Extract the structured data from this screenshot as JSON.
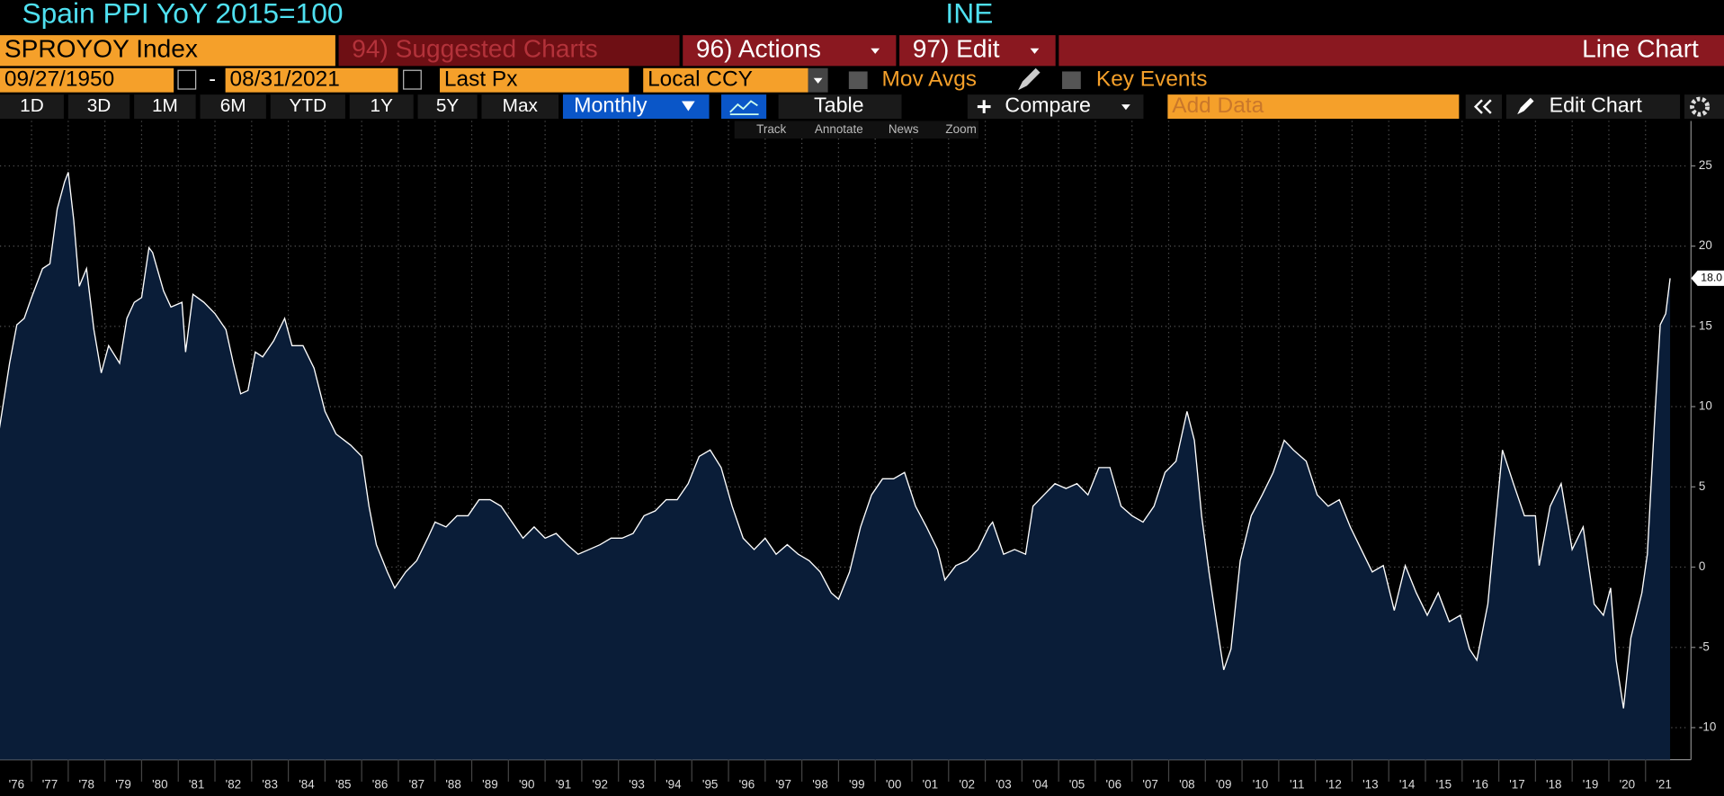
{
  "header": {
    "title": "Spain PPI YoY 2015=100",
    "source": "INE"
  },
  "menu": {
    "ticker": "SPROYOY Index",
    "suggested": "94) Suggested Charts",
    "actions": "96) Actions",
    "edit": "97) Edit",
    "chart_type": "Line Chart"
  },
  "settings": {
    "start_date": "09/27/1950",
    "separator": "-",
    "end_date": "08/31/2021",
    "field": "Last Px",
    "currency": "Local CCY",
    "mov_avgs": "Mov Avgs",
    "key_events": "Key Events"
  },
  "toolbar": {
    "ranges": [
      "1D",
      "3D",
      "1M",
      "6M",
      "YTD",
      "1Y",
      "5Y",
      "Max"
    ],
    "frequency": "Monthly",
    "table": "Table",
    "compare": "Compare",
    "add_data": "Add Data",
    "edit_chart": "Edit Chart"
  },
  "chart_tools": [
    "Track",
    "Annotate",
    "News",
    "Zoom"
  ],
  "chart_data": {
    "type": "line",
    "color": "#ffffff",
    "fill": "#0a1d38",
    "x": [
      1976.1,
      1976.4,
      1976.6,
      1976.8,
      1977.0,
      1977.3,
      1977.5,
      1977.7,
      1977.9,
      1978.0,
      1978.15,
      1978.3,
      1978.5,
      1978.7,
      1978.9,
      1979.1,
      1979.4,
      1979.6,
      1979.8,
      1980.0,
      1980.2,
      1980.3,
      1980.6,
      1980.8,
      1981.1,
      1981.2,
      1981.4,
      1981.7,
      1982.0,
      1982.3,
      1982.5,
      1982.7,
      1982.9,
      1983.1,
      1983.3,
      1983.6,
      1983.9,
      1984.1,
      1984.4,
      1984.7,
      1985.0,
      1985.3,
      1985.7,
      1986.0,
      1986.2,
      1986.4,
      1986.7,
      1986.9,
      1987.2,
      1987.5,
      1987.8,
      1988.0,
      1988.3,
      1988.6,
      1988.9,
      1989.2,
      1989.5,
      1989.8,
      1990.1,
      1990.4,
      1990.7,
      1991.0,
      1991.3,
      1991.6,
      1991.9,
      1992.2,
      1992.5,
      1992.8,
      1993.1,
      1993.4,
      1993.7,
      1994.0,
      1994.3,
      1994.6,
      1994.9,
      1995.2,
      1995.5,
      1995.8,
      1996.1,
      1996.4,
      1996.7,
      1997.0,
      1997.3,
      1997.6,
      1997.9,
      1998.2,
      1998.5,
      1998.8,
      1999.0,
      1999.3,
      1999.6,
      1999.9,
      2000.2,
      2000.5,
      2000.8,
      2001.1,
      2001.4,
      2001.7,
      2001.9,
      2002.2,
      2002.5,
      2002.8,
      2003.1,
      2003.2,
      2003.5,
      2003.8,
      2004.1,
      2004.3,
      2004.6,
      2004.9,
      2005.2,
      2005.5,
      2005.8,
      2006.1,
      2006.4,
      2006.7,
      2007.0,
      2007.3,
      2007.6,
      2007.9,
      2008.2,
      2008.5,
      2008.7,
      2008.9,
      2009.1,
      2009.3,
      2009.5,
      2009.7,
      2009.95,
      2010.25,
      2010.55,
      2010.85,
      2011.15,
      2011.4,
      2011.75,
      2012.05,
      2012.35,
      2012.65,
      2012.95,
      2013.25,
      2013.55,
      2013.85,
      2014.15,
      2014.45,
      2014.75,
      2015.05,
      2015.35,
      2015.65,
      2015.95,
      2016.2,
      2016.4,
      2016.7,
      2016.9,
      2017.1,
      2017.4,
      2017.7,
      2018.0,
      2018.1,
      2018.4,
      2018.7,
      2019.0,
      2019.3,
      2019.6,
      2019.85,
      2020.05,
      2020.2,
      2020.4,
      2020.6,
      2020.9,
      2021.05,
      2021.25,
      2021.4,
      2021.55,
      2021.67
    ],
    "values": [
      8.3,
      12.7,
      15.1,
      15.5,
      16.8,
      18.6,
      18.9,
      22.3,
      24.0,
      24.6,
      21.6,
      17.5,
      18.6,
      14.8,
      12.1,
      13.8,
      12.7,
      15.5,
      16.5,
      16.8,
      19.9,
      19.6,
      17.2,
      16.2,
      16.5,
      13.4,
      17.0,
      16.5,
      15.8,
      14.8,
      12.7,
      10.8,
      11.0,
      13.4,
      13.1,
      14.1,
      15.5,
      13.8,
      13.8,
      12.4,
      9.7,
      8.3,
      7.6,
      6.9,
      3.8,
      1.4,
      -0.3,
      -1.3,
      -0.3,
      0.4,
      1.8,
      2.8,
      2.5,
      3.2,
      3.2,
      4.2,
      4.2,
      3.8,
      2.8,
      1.8,
      2.5,
      1.8,
      2.1,
      1.4,
      0.8,
      1.1,
      1.4,
      1.8,
      1.8,
      2.1,
      3.2,
      3.5,
      4.2,
      4.2,
      5.2,
      6.9,
      7.3,
      6.2,
      3.8,
      1.8,
      1.1,
      1.8,
      0.8,
      1.4,
      0.8,
      0.4,
      -0.3,
      -1.6,
      -2.0,
      -0.3,
      2.5,
      4.5,
      5.5,
      5.5,
      5.9,
      3.8,
      2.5,
      1.1,
      -0.8,
      0.1,
      0.4,
      1.1,
      2.5,
      2.8,
      0.8,
      1.1,
      0.8,
      3.8,
      4.5,
      5.2,
      4.9,
      5.2,
      4.5,
      6.2,
      6.2,
      3.8,
      3.2,
      2.8,
      3.8,
      5.9,
      6.6,
      9.7,
      7.9,
      3.2,
      -0.3,
      -3.4,
      -6.4,
      -5.1,
      0.4,
      3.2,
      4.5,
      5.9,
      7.9,
      7.3,
      6.6,
      4.5,
      3.8,
      4.2,
      2.5,
      1.1,
      -0.3,
      0.1,
      -2.7,
      0.1,
      -1.6,
      -3.0,
      -1.6,
      -3.4,
      -3.0,
      -5.1,
      -5.8,
      -2.3,
      2.5,
      7.3,
      5.2,
      3.2,
      3.2,
      0.1,
      3.8,
      5.2,
      1.1,
      2.5,
      -2.3,
      -3.0,
      -1.3,
      -5.8,
      -8.8,
      -4.4,
      -1.6,
      0.8,
      9.3,
      15.1,
      15.8,
      18.0
    ],
    "last_value_label": {
      "value": 18.0,
      "label": "18.0"
    },
    "xlim": [
      1976.14,
      2022.15
    ],
    "xticks": [
      {
        "value": 1976,
        "label": "'76"
      },
      {
        "value": 1977,
        "label": "'77"
      },
      {
        "value": 1978,
        "label": "'78"
      },
      {
        "value": 1979,
        "label": "'79"
      },
      {
        "value": 1980,
        "label": "'80"
      },
      {
        "value": 1981,
        "label": "'81"
      },
      {
        "value": 1982,
        "label": "'82"
      },
      {
        "value": 1983,
        "label": "'83"
      },
      {
        "value": 1984,
        "label": "'84"
      },
      {
        "value": 1985,
        "label": "'85"
      },
      {
        "value": 1986,
        "label": "'86"
      },
      {
        "value": 1987,
        "label": "'87"
      },
      {
        "value": 1988,
        "label": "'88"
      },
      {
        "value": 1989,
        "label": "'89"
      },
      {
        "value": 1990,
        "label": "'90"
      },
      {
        "value": 1991,
        "label": "'91"
      },
      {
        "value": 1992,
        "label": "'92"
      },
      {
        "value": 1993,
        "label": "'93"
      },
      {
        "value": 1994,
        "label": "'94"
      },
      {
        "value": 1995,
        "label": "'95"
      },
      {
        "value": 1996,
        "label": "'96"
      },
      {
        "value": 1997,
        "label": "'97"
      },
      {
        "value": 1998,
        "label": "'98"
      },
      {
        "value": 1999,
        "label": "'99"
      },
      {
        "value": 2000,
        "label": "'00"
      },
      {
        "value": 2001,
        "label": "'01"
      },
      {
        "value": 2002,
        "label": "'02"
      },
      {
        "value": 2003,
        "label": "'03"
      },
      {
        "value": 2004,
        "label": "'04"
      },
      {
        "value": 2005,
        "label": "'05"
      },
      {
        "value": 2006,
        "label": "'06"
      },
      {
        "value": 2007,
        "label": "'07"
      },
      {
        "value": 2008,
        "label": "'08"
      },
      {
        "value": 2009,
        "label": "'09"
      },
      {
        "value": 2010,
        "label": "'10"
      },
      {
        "value": 2011,
        "label": "'11"
      },
      {
        "value": 2012,
        "label": "'12"
      },
      {
        "value": 2013,
        "label": "'13"
      },
      {
        "value": 2014,
        "label": "'14"
      },
      {
        "value": 2015,
        "label": "'15"
      },
      {
        "value": 2016,
        "label": "'16"
      },
      {
        "value": 2017,
        "label": "'17"
      },
      {
        "value": 2018,
        "label": "'18"
      },
      {
        "value": 2019,
        "label": "'19"
      },
      {
        "value": 2020,
        "label": "'20"
      },
      {
        "value": 2021,
        "label": "'21"
      }
    ],
    "ylim": [
      -12,
      27.8
    ],
    "yticks": [
      25,
      20,
      15,
      10,
      5,
      0,
      -5,
      -10
    ],
    "grid": true
  }
}
